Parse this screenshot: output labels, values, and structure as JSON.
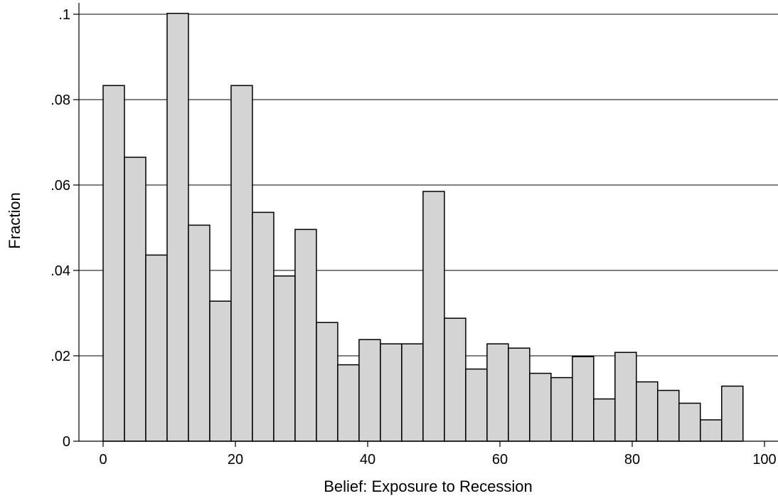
{
  "chart_data": {
    "type": "bar",
    "title": "",
    "xlabel": "Belief: Exposure to Recession",
    "ylabel": "Fraction",
    "bin_width": 3.225,
    "x_start": 0,
    "values": [
      0.0833,
      0.0665,
      0.0436,
      0.1002,
      0.0506,
      0.0328,
      0.0833,
      0.0536,
      0.0387,
      0.0496,
      0.0278,
      0.0179,
      0.0238,
      0.0228,
      0.0228,
      0.0585,
      0.0288,
      0.0169,
      0.0228,
      0.0218,
      0.0159,
      0.0149,
      0.0198,
      0.0099,
      0.0208,
      0.0139,
      0.0119,
      0.0089,
      0.005,
      0.0129
    ],
    "xlim": [
      -3,
      100
    ],
    "ylim": [
      0,
      0.1
    ],
    "x_ticks": [
      {
        "value": 0,
        "label": "0"
      },
      {
        "value": 20,
        "label": "20"
      },
      {
        "value": 40,
        "label": "40"
      },
      {
        "value": 60,
        "label": "60"
      },
      {
        "value": 80,
        "label": "80"
      },
      {
        "value": 100,
        "label": "100"
      }
    ],
    "y_ticks": [
      {
        "value": 0,
        "label": "0"
      },
      {
        "value": 0.02,
        "label": ".02"
      },
      {
        "value": 0.04,
        "label": ".04"
      },
      {
        "value": 0.06,
        "label": ".06"
      },
      {
        "value": 0.08,
        "label": ".08"
      },
      {
        "value": 0.1,
        "label": ".1"
      }
    ],
    "grid": true,
    "bar_color": "#d4d4d4",
    "edge_color": "#000000"
  }
}
